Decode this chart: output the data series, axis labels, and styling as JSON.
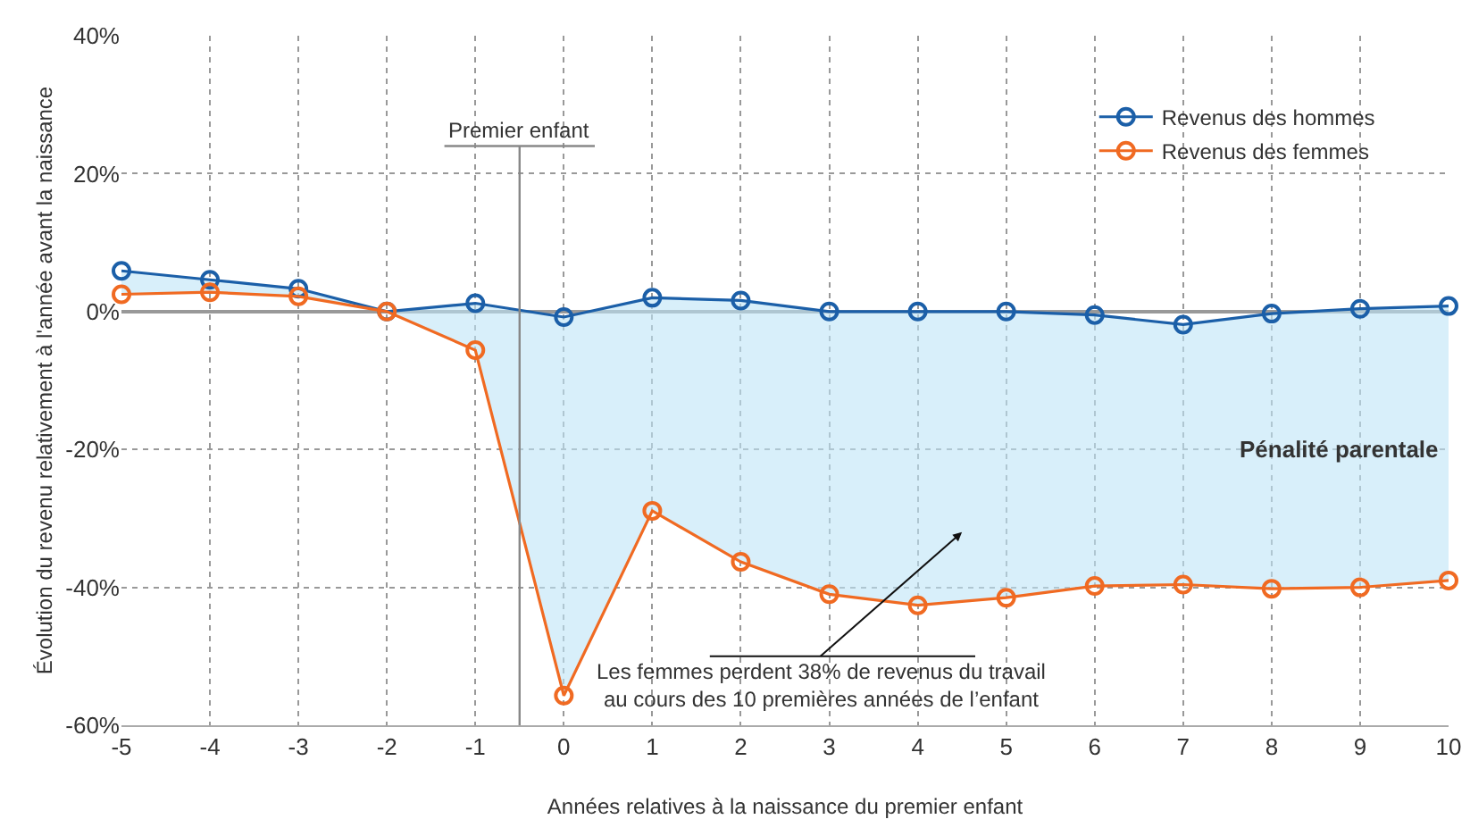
{
  "chart_data": {
    "type": "line",
    "xlabel": "Années relatives à la naissance du premier enfant",
    "ylabel": "Évolution du revenu relativement à l'année avant la naissance",
    "x": [
      -5,
      -4,
      -3,
      -2,
      -1,
      0,
      1,
      2,
      3,
      4,
      5,
      6,
      7,
      8,
      9,
      10
    ],
    "series": [
      {
        "name": "Revenus des hommes",
        "color": "#1b5fa8",
        "values": [
          5.9,
          4.6,
          3.3,
          0,
          1.2,
          -0.8,
          2,
          1.6,
          0,
          0,
          0,
          -0.5,
          -1.9,
          -0.3,
          0.4,
          0.8
        ]
      },
      {
        "name": "Revenus des femmes",
        "color": "#f06a22",
        "values": [
          2.5,
          2.8,
          2.2,
          0,
          -5.6,
          -55.7,
          -28.9,
          -36.3,
          -41,
          -42.6,
          -41.5,
          -39.8,
          -39.6,
          -40.2,
          -40,
          -39
        ],
        "lower": [
          2.5,
          2.8,
          2.2,
          0,
          -5.6,
          -55.7,
          -28.9,
          -36.3,
          -41,
          -42.6,
          -41.5,
          -39.8,
          -39.6,
          -40.2,
          -40,
          -39
        ],
        "upper": [
          5.9,
          4.6,
          3.3,
          0,
          1.2,
          -0.8,
          2,
          1.6,
          0,
          0,
          0,
          -0.5,
          -1.9,
          -0.3,
          0.4,
          0.8
        ]
      }
    ],
    "xlim": [
      -5,
      10
    ],
    "xticks": [
      -5,
      -4,
      -3,
      -2,
      -1,
      0,
      1,
      2,
      3,
      4,
      5,
      6,
      7,
      8,
      9,
      10
    ],
    "ylim": [
      -60,
      40
    ],
    "yticks": [
      {
        "value": -60,
        "label": "-60%"
      },
      {
        "value": -40,
        "label": "-40%"
      },
      {
        "value": -20,
        "label": "-20%"
      },
      {
        "value": 0,
        "label": "0%"
      },
      {
        "value": 20,
        "label": "20%"
      },
      {
        "value": 40,
        "label": "40%"
      }
    ],
    "ref_lines": [
      {
        "axis": "x",
        "value": -0.5,
        "label": "Premier enfant",
        "color": "#888888"
      }
    ],
    "annotations": [
      "Pénalité parentale",
      "Les femmes perdent 38% de revenus du travail\nau cours des 10 premières années de l’enfant"
    ],
    "grid": true,
    "legend": "top right",
    "marker": "circle",
    "line_style": "solid"
  }
}
